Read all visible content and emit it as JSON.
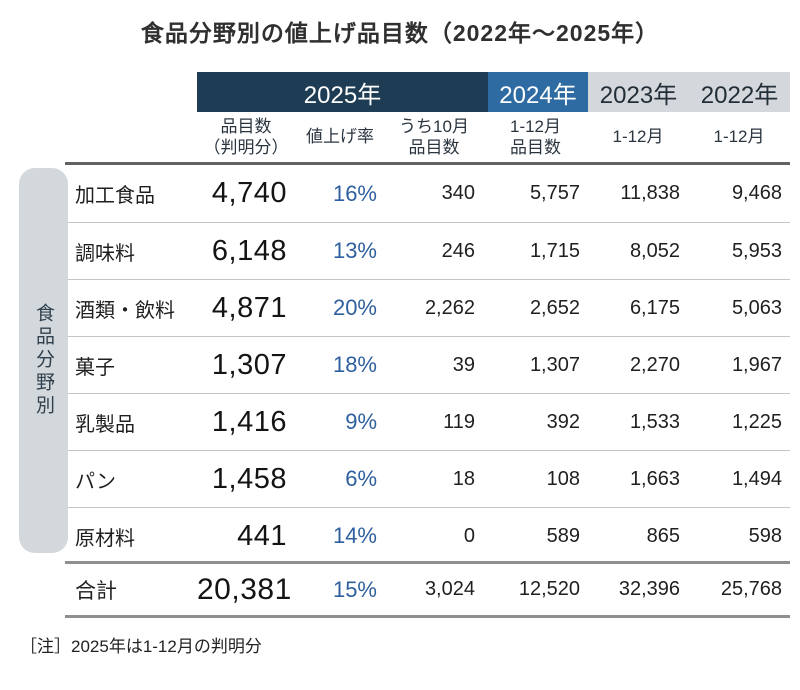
{
  "title": "食品分野別の値上げ品目数（2022年～2025年）",
  "note": "［注］2025年は1-12月の判明分",
  "sidebar_label": "食品分野別",
  "colors": {
    "navy_2025": "#1e3d54",
    "blue_2024": "#2e6ba3",
    "gray_band": "#d4d8dc",
    "percent_blue": "#2e5f9e",
    "sidebar_gray": "#d3d8dc"
  },
  "header": {
    "subheaders": [
      {
        "line1": "品目数",
        "line2": "（判明分）"
      },
      {
        "line1": "値上げ率",
        "line2": ""
      },
      {
        "line1": "うち10月",
        "line2": "品目数"
      },
      {
        "line1": "1-12月",
        "line2": "品目数"
      },
      {
        "line1": "1-12月",
        "line2": ""
      },
      {
        "line1": "1-12月",
        "line2": ""
      }
    ]
  },
  "chart_data": {
    "type": "table",
    "title": "食品分野別の値上げ品目数（2022年～2025年）",
    "column_groups": [
      {
        "year": "2025年",
        "span": 3
      },
      {
        "year": "2024年",
        "span": 1
      },
      {
        "year": "2023年",
        "span": 1
      },
      {
        "year": "2022年",
        "span": 1
      }
    ],
    "columns": [
      "品目数（判明分）",
      "値上げ率",
      "うち10月品目数",
      "1-12月品目数",
      "1-12月",
      "1-12月"
    ],
    "rows": [
      {
        "category": "加工食品",
        "values": [
          "4,740",
          "16%",
          "340",
          "5,757",
          "11,838",
          "9,468"
        ]
      },
      {
        "category": "調味料",
        "values": [
          "6,148",
          "13%",
          "246",
          "1,715",
          "8,052",
          "5,953"
        ]
      },
      {
        "category": "酒類・飲料",
        "values": [
          "4,871",
          "20%",
          "2,262",
          "2,652",
          "6,175",
          "5,063"
        ]
      },
      {
        "category": "菓子",
        "values": [
          "1,307",
          "18%",
          "39",
          "1,307",
          "2,270",
          "1,967"
        ]
      },
      {
        "category": "乳製品",
        "values": [
          "1,416",
          "9%",
          "119",
          "392",
          "1,533",
          "1,225"
        ]
      },
      {
        "category": "パン",
        "values": [
          "1,458",
          "6%",
          "18",
          "108",
          "1,663",
          "1,494"
        ]
      },
      {
        "category": "原材料",
        "values": [
          "441",
          "14%",
          "0",
          "589",
          "865",
          "598"
        ]
      }
    ],
    "total": {
      "category": "合計",
      "values": [
        "20,381",
        "15%",
        "3,024",
        "12,520",
        "32,396",
        "25,768"
      ]
    }
  }
}
